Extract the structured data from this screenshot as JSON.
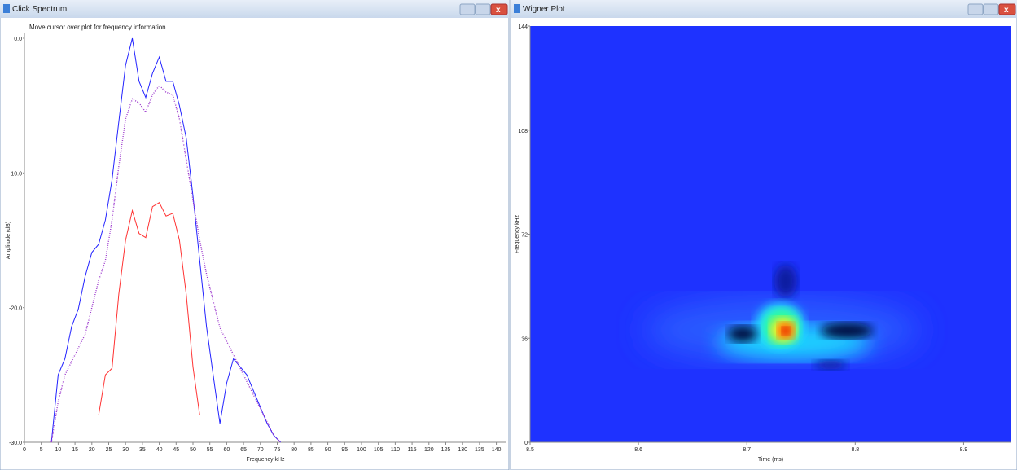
{
  "windows": [
    {
      "title": "Click Spectrum",
      "hint": "Move cursor over plot for frequency information"
    },
    {
      "title": "Wigner Plot"
    }
  ],
  "chart_data": [
    {
      "type": "line",
      "xlabel": "Frequency kHz",
      "ylabel": "Amplitude (dB)",
      "x": [
        8,
        10,
        12,
        14,
        16,
        18,
        20,
        22,
        24,
        26,
        28,
        30,
        32,
        34,
        36,
        38,
        40,
        42,
        44,
        46,
        48,
        50,
        52,
        54,
        56,
        58,
        60,
        62,
        64,
        66,
        68,
        70,
        72,
        74,
        76
      ],
      "series": [
        {
          "color": "#2222ff",
          "dash": false,
          "values": [
            -30,
            -25,
            -23.8,
            -21.4,
            -20.1,
            -17.7,
            -15.9,
            -15.3,
            -13.5,
            -10.5,
            -6.2,
            -2,
            0,
            -3.2,
            -4.4,
            -2.6,
            -1.4,
            -3.2,
            -3.2,
            -5,
            -7.4,
            -11.7,
            -16.5,
            -21.4,
            -25,
            -28.6,
            -25.6,
            -23.8,
            -24.4,
            -25,
            -26.2,
            -27.4,
            -28.6,
            -29.5,
            -30
          ]
        },
        {
          "color": "#9933cc",
          "dash": true,
          "values": [
            -30,
            -27,
            -25,
            -24,
            -23,
            -22,
            -20,
            -18,
            -16.5,
            -13.5,
            -9.5,
            -6,
            -4.5,
            -4.8,
            -5.5,
            -4.2,
            -3.5,
            -4,
            -4.2,
            -6,
            -9,
            -12,
            -15,
            -17.5,
            -19.5,
            -21.5,
            -22.5,
            -23.5,
            -24.5,
            -25.5,
            -26.5,
            -27.5,
            -28.5,
            -29.5,
            -30
          ]
        },
        {
          "color": "#ff3333",
          "dash": false,
          "values": [
            null,
            null,
            null,
            null,
            null,
            null,
            null,
            -28,
            -25,
            -24.5,
            -19,
            -15,
            -12.8,
            -14.5,
            -14.8,
            -12.5,
            -12.2,
            -13.2,
            -13,
            -15,
            -19,
            -24.4,
            -28,
            null,
            null,
            null,
            null,
            null,
            null,
            null,
            null,
            null,
            null,
            null,
            null
          ]
        }
      ],
      "xlim": [
        0,
        143
      ],
      "ylim": [
        -30,
        0
      ],
      "xticks": [
        0,
        5,
        10,
        15,
        20,
        25,
        30,
        35,
        40,
        45,
        50,
        55,
        60,
        65,
        70,
        75,
        80,
        85,
        90,
        95,
        100,
        105,
        110,
        115,
        120,
        125,
        130,
        135,
        140
      ],
      "yticks": [
        {
          "value": 0,
          "label": "0.0"
        },
        {
          "value": -10,
          "label": "-10.0"
        },
        {
          "value": -20,
          "label": "-20.0"
        },
        {
          "value": -30,
          "label": "-30.0"
        }
      ]
    },
    {
      "type": "heatmap",
      "xlabel": "Time (ms)",
      "ylabel": "Frequency kHz",
      "xlim": [
        8.5,
        8.944
      ],
      "ylim": [
        0,
        144
      ],
      "xticks": [
        8.5,
        8.6,
        8.7,
        8.8,
        8.9
      ],
      "yticks": [
        0,
        36,
        72,
        108,
        144
      ]
    }
  ]
}
